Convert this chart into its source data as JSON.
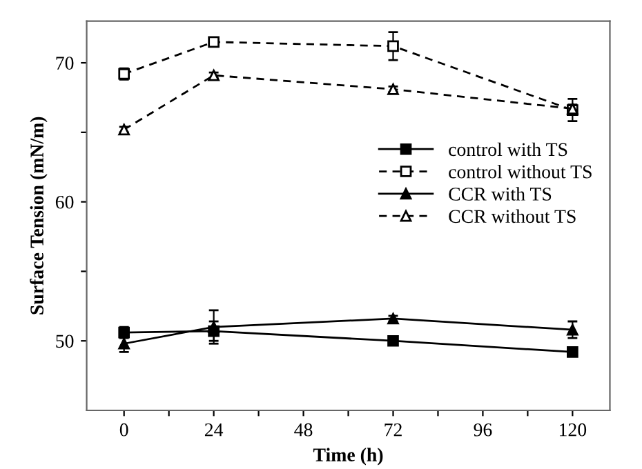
{
  "chart_data": {
    "type": "line",
    "xlabel": "Time (h)",
    "ylabel": "Surface Tension (mN/m)",
    "x": [
      0,
      24,
      72,
      120
    ],
    "xlim": [
      -10,
      130
    ],
    "xticks": [
      0,
      {
        "value": 12,
        "label": null
      },
      24,
      {
        "value": 36,
        "label": null
      },
      48,
      {
        "value": 60,
        "label": null
      },
      72,
      {
        "value": 84,
        "label": null
      },
      96,
      {
        "value": 108,
        "label": null
      },
      120
    ],
    "ylim": [
      45,
      73
    ],
    "yticks": [
      50,
      {
        "value": 55,
        "label": null
      },
      60,
      {
        "value": 65,
        "label": null
      },
      70
    ],
    "grid": false,
    "legend": "right",
    "series": [
      {
        "name": "control with TS",
        "color": "#000000",
        "marker": "square",
        "line_style": "solid",
        "values": [
          50.6,
          50.7,
          50.0,
          49.2
        ],
        "errors": [
          0.4,
          0.7,
          0.2,
          0.2
        ]
      },
      {
        "name": "control without TS",
        "color": "#000000",
        "marker": "square",
        "line_style": "dashed",
        "values": [
          69.2,
          71.5,
          71.2,
          66.6
        ],
        "errors": [
          0.4,
          0.3,
          1.0,
          0.8
        ]
      },
      {
        "name": "CCR with TS",
        "color": "#000000",
        "marker": "triangle",
        "line_style": "solid",
        "values": [
          49.8,
          51.0,
          51.6,
          50.8
        ],
        "errors": [
          0.6,
          1.2,
          0.2,
          0.6
        ]
      },
      {
        "name": "CCR without TS",
        "color": "#000000",
        "marker": "triangle",
        "line_style": "dashed",
        "values": [
          65.2,
          69.1,
          68.1,
          66.7
        ],
        "errors": [
          0.2,
          0.2,
          0.2,
          0.3
        ]
      }
    ]
  }
}
